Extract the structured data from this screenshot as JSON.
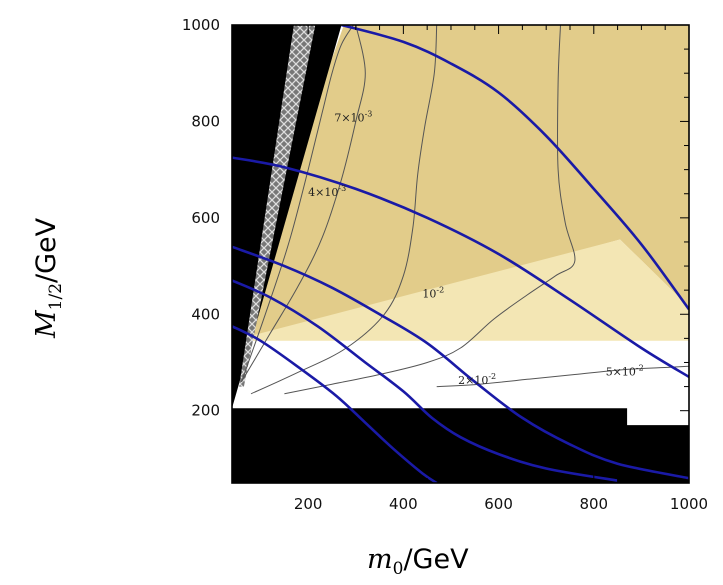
{
  "chart_data": {
    "type": "line",
    "xlabel": {
      "math": "m",
      "sub": "0",
      "unit": "/GeV"
    },
    "ylabel": {
      "math": "M",
      "sub": "1/2",
      "unit": "/GeV"
    },
    "xlim": [
      40,
      1000
    ],
    "ylim": [
      50,
      1000
    ],
    "xticks": [
      200,
      400,
      600,
      800,
      1000
    ],
    "yticks": [
      200,
      400,
      600,
      800,
      1000
    ],
    "grid": false,
    "colors": {
      "allowed_region": "#e2cc8a",
      "light_region": "#f3e6b4",
      "excluded": "#000000",
      "blue_curves": "#1a1aa6",
      "contours": "#555555"
    },
    "regions": {
      "excluded_low": {
        "polygon": [
          [
            40,
            50
          ],
          [
            1000,
            50
          ],
          [
            1000,
            170
          ],
          [
            870,
            170
          ],
          [
            870,
            205
          ],
          [
            40,
            205
          ]
        ]
      },
      "excluded_left": {
        "polygon": [
          [
            40,
            1000
          ],
          [
            270,
            1000
          ],
          [
            40,
            205
          ]
        ]
      },
      "hatched_band": {
        "polygon": [
          [
            170,
            1000
          ],
          [
            215,
            1000
          ],
          [
            65,
            250
          ],
          [
            55,
            250
          ]
        ]
      },
      "allowed": {
        "polygon": [
          [
            275,
            1000
          ],
          [
            1000,
            1000
          ],
          [
            1000,
            415
          ],
          [
            855,
            555
          ],
          [
            85,
            345
          ],
          [
            40,
            345
          ]
        ]
      },
      "light_zone": {
        "polygon": [
          [
            40,
            345
          ],
          [
            1000,
            345
          ],
          [
            1000,
            415
          ],
          [
            855,
            555
          ]
        ]
      }
    },
    "series": [
      {
        "points": [
          [
            40,
            725
          ],
          [
            150,
            705
          ],
          [
            300,
            660
          ],
          [
            450,
            600
          ],
          [
            600,
            525
          ],
          [
            750,
            430
          ],
          [
            900,
            330
          ],
          [
            1000,
            270
          ]
        ]
      },
      {
        "points": [
          [
            40,
            540
          ],
          [
            150,
            500
          ],
          [
            250,
            455
          ],
          [
            350,
            400
          ],
          [
            450,
            340
          ],
          [
            550,
            260
          ],
          [
            650,
            185
          ],
          [
            750,
            130
          ],
          [
            850,
            90
          ],
          [
            1000,
            60
          ]
        ]
      },
      {
        "points": [
          [
            40,
            470
          ],
          [
            120,
            435
          ],
          [
            220,
            375
          ],
          [
            320,
            300
          ],
          [
            400,
            240
          ],
          [
            460,
            185
          ],
          [
            520,
            145
          ],
          [
            600,
            110
          ],
          [
            700,
            80
          ],
          [
            850,
            55
          ]
        ]
      },
      {
        "points": [
          [
            40,
            375
          ],
          [
            100,
            345
          ],
          [
            180,
            290
          ],
          [
            260,
            230
          ],
          [
            320,
            175
          ],
          [
            380,
            120
          ],
          [
            440,
            70
          ],
          [
            470,
            50
          ]
        ]
      },
      {
        "points": [
          [
            270,
            1000
          ],
          [
            400,
            965
          ],
          [
            500,
            920
          ],
          [
            600,
            860
          ],
          [
            700,
            770
          ],
          [
            800,
            660
          ],
          [
            900,
            545
          ],
          [
            1000,
            410
          ]
        ]
      }
    ],
    "contours": [
      {
        "label": "7×10",
        "exp": "-3",
        "points": [
          [
            295,
            1000
          ],
          [
            270,
            960
          ],
          [
            250,
            900
          ],
          [
            230,
            820
          ],
          [
            200,
            700
          ],
          [
            160,
            550
          ],
          [
            110,
            400
          ],
          [
            60,
            260
          ]
        ]
      },
      {
        "label": "4×10",
        "exp": "-3",
        "points": [
          [
            300,
            1000
          ],
          [
            320,
            900
          ],
          [
            300,
            800
          ],
          [
            270,
            680
          ],
          [
            230,
            560
          ],
          [
            180,
            460
          ],
          [
            120,
            360
          ],
          [
            60,
            260
          ]
        ]
      },
      {
        "label": "10",
        "exp": "-2",
        "points": [
          [
            470,
            1000
          ],
          [
            465,
            900
          ],
          [
            445,
            790
          ],
          [
            430,
            690
          ],
          [
            420,
            580
          ],
          [
            400,
            480
          ],
          [
            360,
            400
          ],
          [
            280,
            330
          ],
          [
            180,
            280
          ],
          [
            80,
            235
          ]
        ]
      },
      {
        "label": "2×10",
        "exp": "-2",
        "points": [
          [
            730,
            1000
          ],
          [
            725,
            880
          ],
          [
            725,
            700
          ],
          [
            740,
            590
          ],
          [
            760,
            510
          ],
          [
            720,
            480
          ],
          [
            660,
            440
          ],
          [
            590,
            390
          ],
          [
            520,
            330
          ],
          [
            450,
            300
          ],
          [
            350,
            275
          ],
          [
            250,
            255
          ],
          [
            150,
            235
          ]
        ]
      },
      {
        "label": "5×10",
        "exp": "-2",
        "points": [
          [
            470,
            250
          ],
          [
            560,
            255
          ],
          [
            660,
            265
          ],
          [
            760,
            275
          ],
          [
            860,
            285
          ],
          [
            960,
            290
          ],
          [
            1000,
            292
          ]
        ]
      }
    ],
    "contour_labels": [
      {
        "text": "7×10",
        "exp": "-3",
        "at": [
          255,
          800
        ]
      },
      {
        "text": "4×10",
        "exp": "-3",
        "at": [
          200,
          645
        ]
      },
      {
        "text": "10",
        "exp": "-2",
        "at": [
          440,
          435
        ]
      },
      {
        "text": "2×10",
        "exp": "-2",
        "at": [
          515,
          255
        ]
      },
      {
        "text": "5×10",
        "exp": "-2",
        "at": [
          825,
          273
        ]
      }
    ]
  }
}
